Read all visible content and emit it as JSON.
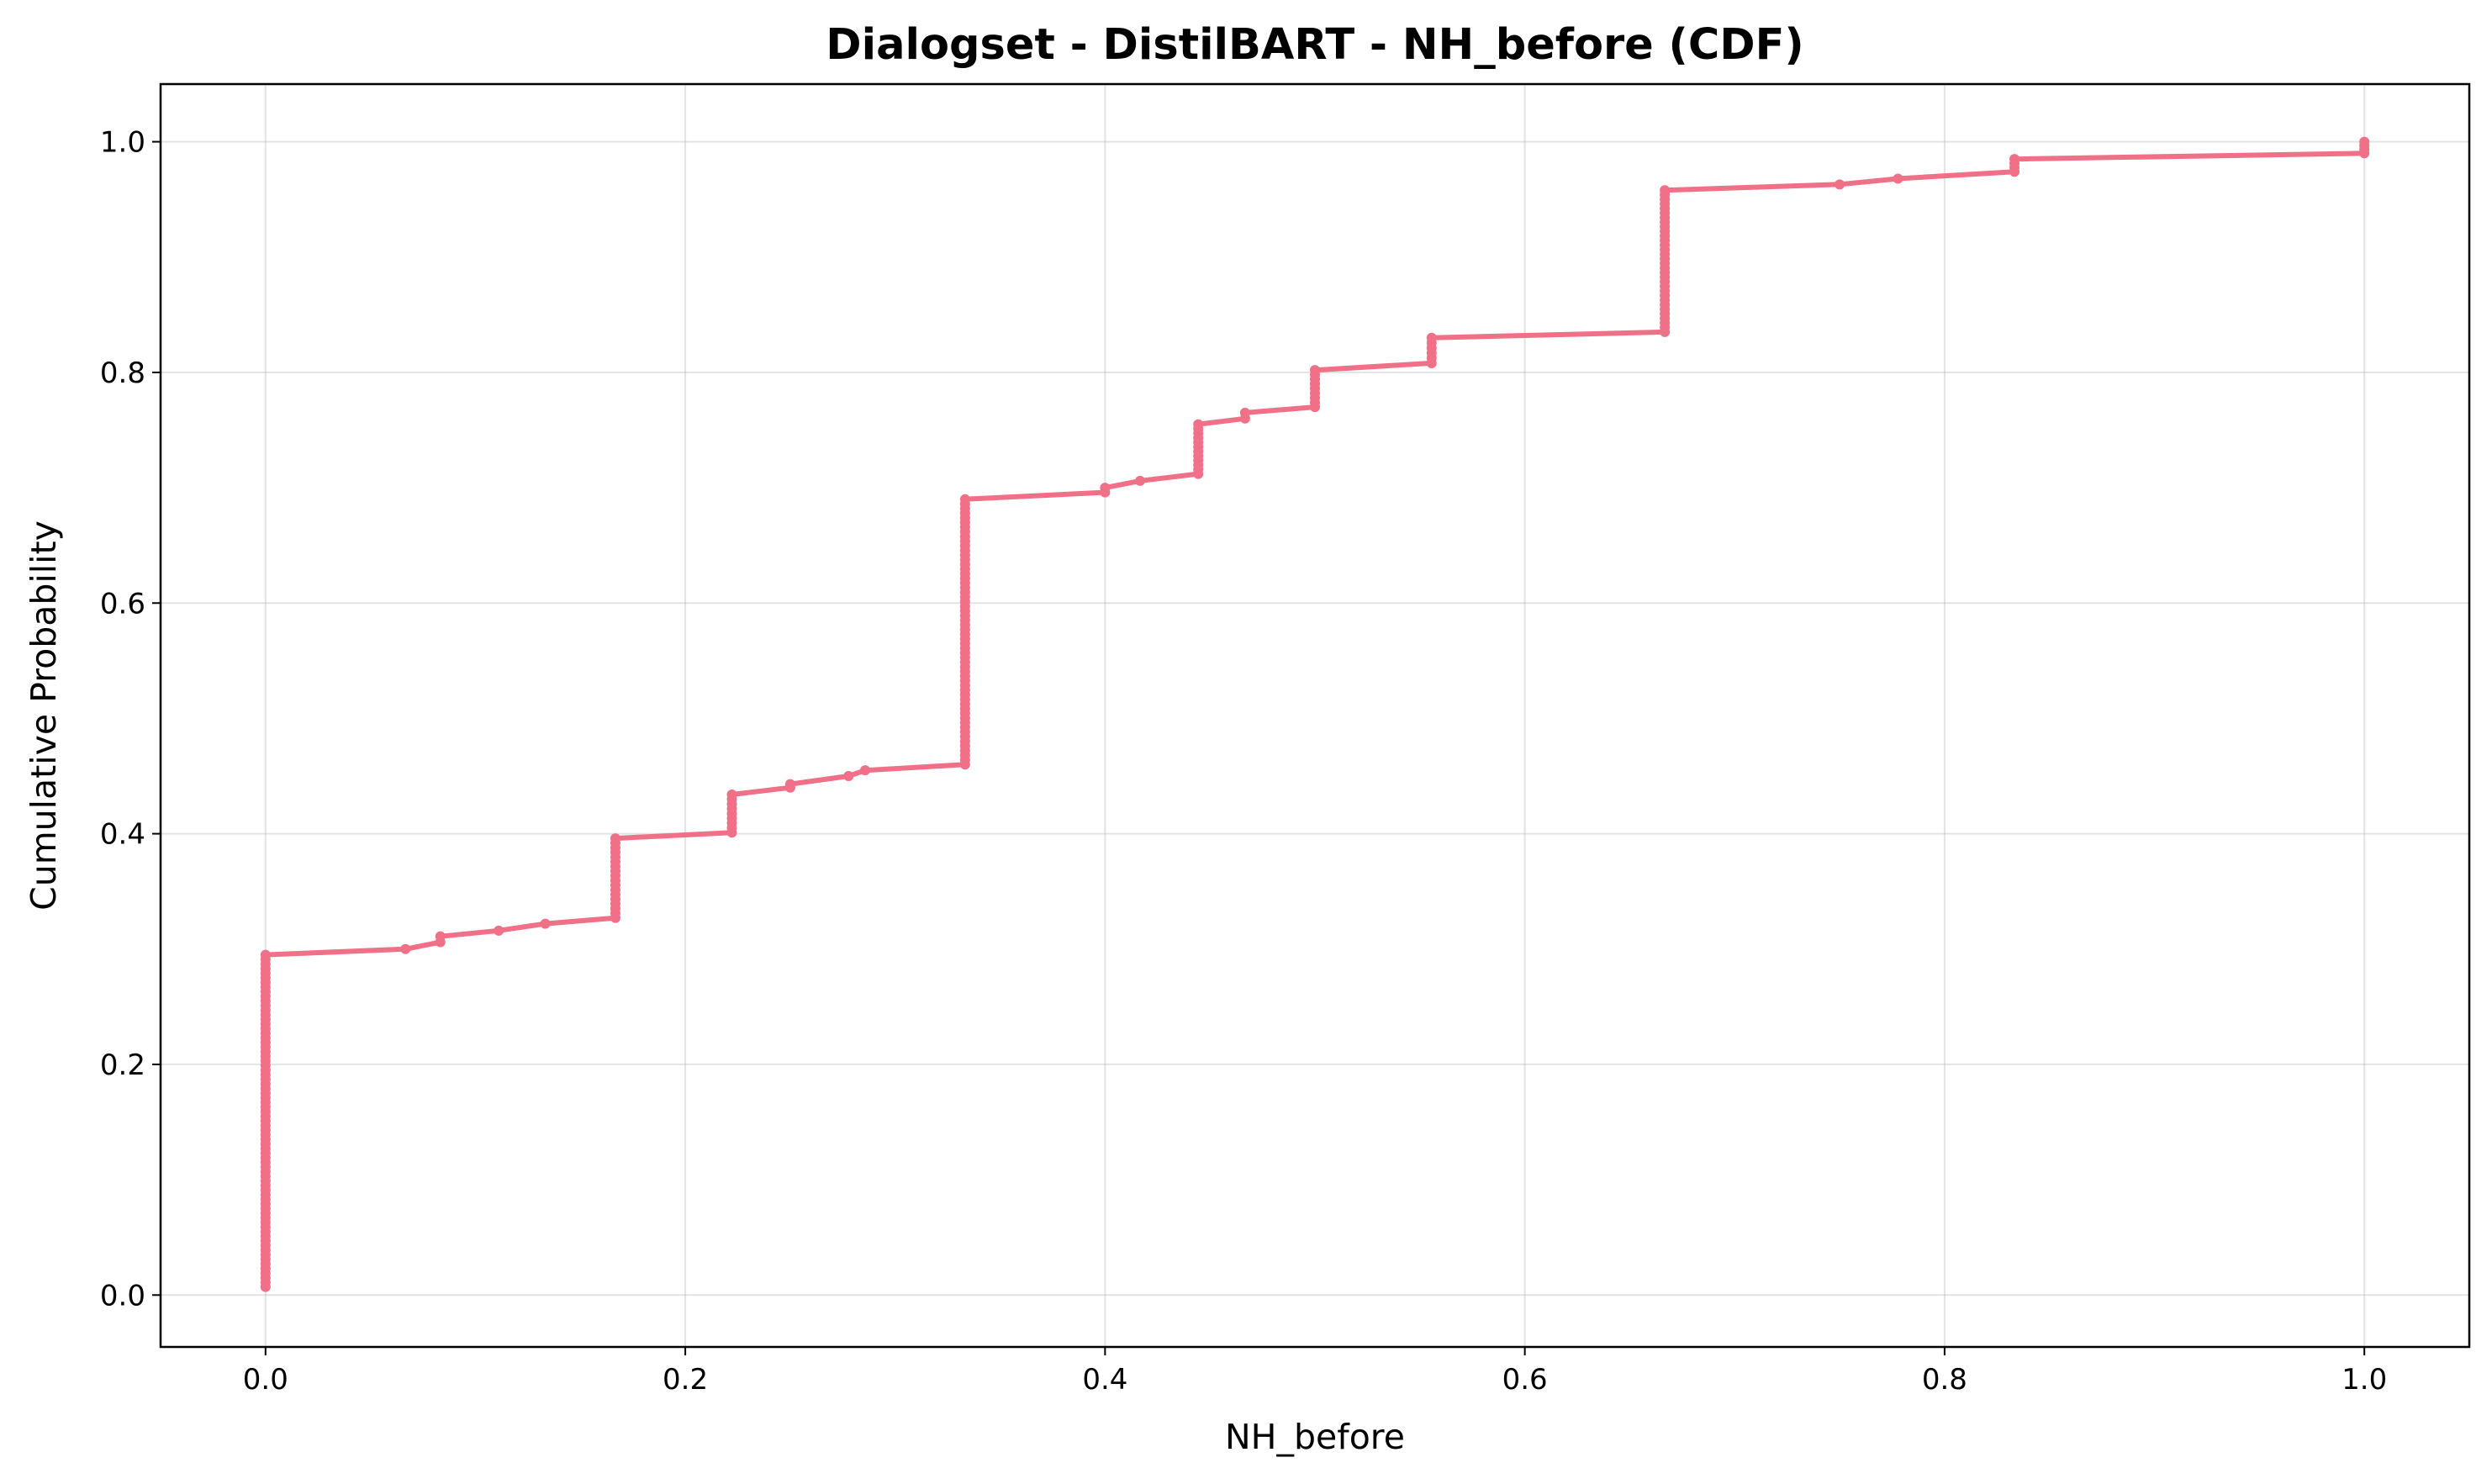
{
  "chart_data": {
    "type": "line",
    "title": "Dialogset - DistilBART - NH_before (CDF)",
    "xlabel": "NH_before",
    "ylabel": "Cumulative Probability",
    "xlim": [
      -0.05,
      1.05
    ],
    "ylim": [
      -0.045,
      1.05
    ],
    "xticks": [
      "0.0",
      "0.2",
      "0.4",
      "0.6",
      "0.8",
      "1.0"
    ],
    "xtick_values": [
      0,
      0.2,
      0.4,
      0.6,
      0.8,
      1.0
    ],
    "yticks": [
      "0.0",
      "0.2",
      "0.4",
      "0.6",
      "0.8",
      "1.0"
    ],
    "ytick_values": [
      0,
      0.2,
      0.4,
      0.6,
      0.8,
      1.0
    ],
    "grid": true,
    "color": "#f07088",
    "series": [
      {
        "x_y": [
          [
            0.0,
            0.007
          ],
          [
            0.0,
            0.295
          ],
          [
            0.0667,
            0.3
          ],
          [
            0.0833,
            0.306
          ],
          [
            0.0833,
            0.311
          ],
          [
            0.1111,
            0.316
          ],
          [
            0.1333,
            0.322
          ],
          [
            0.1667,
            0.327
          ],
          [
            0.1667,
            0.396
          ],
          [
            0.2222,
            0.401
          ],
          [
            0.2222,
            0.434
          ],
          [
            0.25,
            0.44
          ],
          [
            0.25,
            0.443
          ],
          [
            0.2778,
            0.45
          ],
          [
            0.2857,
            0.455
          ],
          [
            0.3333,
            0.46
          ],
          [
            0.3333,
            0.69
          ],
          [
            0.4,
            0.696
          ],
          [
            0.4,
            0.7
          ],
          [
            0.4167,
            0.706
          ],
          [
            0.4444,
            0.712
          ],
          [
            0.4444,
            0.755
          ],
          [
            0.4667,
            0.76
          ],
          [
            0.4667,
            0.765
          ],
          [
            0.5,
            0.77
          ],
          [
            0.5,
            0.802
          ],
          [
            0.5556,
            0.808
          ],
          [
            0.5556,
            0.83
          ],
          [
            0.6667,
            0.835
          ],
          [
            0.6667,
            0.958
          ],
          [
            0.75,
            0.963
          ],
          [
            0.7778,
            0.968
          ],
          [
            0.8333,
            0.974
          ],
          [
            0.8333,
            0.985
          ],
          [
            1.0,
            0.99
          ],
          [
            1.0,
            1.0
          ]
        ]
      }
    ]
  }
}
